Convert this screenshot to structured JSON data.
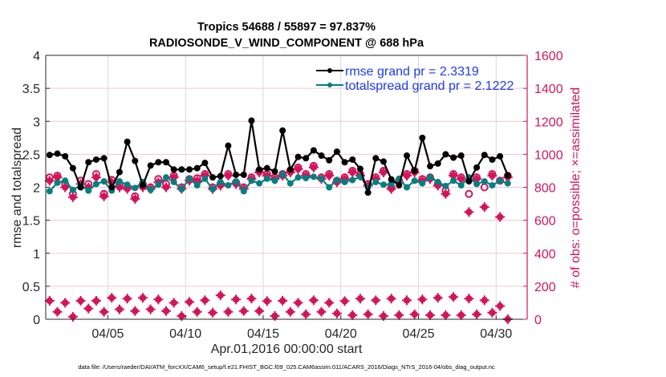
{
  "chart_data": {
    "type": "line",
    "title": "Tropics 54688 / 55897 = 97.837%",
    "subtitle": "RADIOSONDE_V_WIND_COMPONENT @ 688 hPa",
    "xlabel": "Apr.01,2016 00:00:00 start",
    "ylabel": "rmse and totalspread",
    "ylabel_right": "# of obs: o=possible; ×=assimilated",
    "footnote": "data file: /Users/raeder/DAI/ATM_forcXX/CAM6_setup/f.e21.FHIST_BGC.f09_025.CAM6assim.011/ACARS_2016/Diags_NTrS_2016-04/obs_diag_output.nc",
    "xlim_days": [
      0,
      30
    ],
    "x_start_day": 0.25,
    "x_step_days": 0.5,
    "x_ticks": [
      {
        "day": 4,
        "label": "04/05"
      },
      {
        "day": 9,
        "label": "04/10"
      },
      {
        "day": 14,
        "label": "04/15"
      },
      {
        "day": 19,
        "label": "04/20"
      },
      {
        "day": 24,
        "label": "04/25"
      },
      {
        "day": 29,
        "label": "04/30"
      }
    ],
    "ylim": [
      0,
      4
    ],
    "y_ticks": [
      "0",
      "0.5",
      "1",
      "1.5",
      "2",
      "2.5",
      "3",
      "3.5",
      "4"
    ],
    "ylim_right": [
      0,
      1600
    ],
    "y_ticks_right": [
      "0",
      "200",
      "400",
      "600",
      "800",
      "1000",
      "1200",
      "1400",
      "1600"
    ],
    "grid": true,
    "legend_position": "top-right",
    "legend": [
      {
        "name": "rmse grand pr = 2.3319",
        "color": "#000000"
      },
      {
        "name": "totalspread grand pr = 2.1222",
        "color": "#008080"
      }
    ],
    "series": [
      {
        "name": "rmse",
        "axis": "left",
        "color": "#000000",
        "values": [
          2.49,
          2.51,
          2.47,
          2.29,
          2.0,
          2.38,
          2.42,
          2.44,
          2.0,
          2.23,
          2.69,
          2.4,
          2.03,
          2.33,
          2.38,
          2.38,
          2.27,
          2.27,
          2.27,
          2.29,
          2.37,
          2.15,
          2.17,
          2.63,
          2.19,
          2.19,
          3.01,
          2.27,
          2.29,
          2.24,
          2.86,
          2.27,
          2.46,
          2.44,
          2.56,
          2.48,
          2.41,
          2.54,
          2.38,
          2.42,
          2.28,
          1.92,
          2.44,
          2.39,
          2.12,
          2.03,
          2.48,
          2.25,
          2.75,
          2.32,
          2.36,
          2.5,
          2.45,
          2.48,
          2.09,
          2.3,
          2.49,
          2.42,
          2.47,
          2.18
        ]
      },
      {
        "name": "totalspread",
        "axis": "left",
        "color": "#008080",
        "values": [
          1.94,
          2.07,
          2.1,
          1.96,
          2.03,
          1.95,
          2.05,
          2.09,
          1.95,
          2.09,
          2.04,
          1.99,
          2.08,
          1.96,
          2.04,
          2.15,
          2.08,
          1.97,
          2.13,
          2.03,
          2.13,
          1.97,
          2.08,
          2.03,
          2.09,
          1.94,
          2.1,
          2.06,
          2.13,
          2.1,
          2.2,
          2.06,
          2.15,
          2.14,
          2.16,
          2.13,
          2.0,
          2.11,
          2.08,
          2.11,
          2.16,
          2.0,
          2.08,
          2.04,
          2.05,
          2.13,
          2.0,
          2.1,
          2.06,
          2.15,
          2.08,
          2.02,
          2.1,
          2.03,
          2.15,
          2.05,
          2.09,
          2.03,
          2.1,
          2.06
        ]
      },
      {
        "name": "obs_possible_large",
        "axis": "right",
        "color": "#d4145a",
        "marker": "o",
        "values": [
          860,
          870,
          820,
          760,
          840,
          820,
          880,
          760,
          845,
          820,
          800,
          745,
          820,
          800,
          850,
          820,
          870,
          800,
          850,
          855,
          880,
          800,
          820,
          880,
          830,
          800,
          860,
          900,
          880,
          860,
          880,
          900,
          920,
          880,
          930,
          860,
          880,
          840,
          860,
          900,
          880,
          820,
          860,
          900,
          800,
          840,
          880,
          900,
          850,
          860,
          820,
          780,
          880,
          860,
          760,
          860,
          800,
          880,
          840,
          870
        ]
      },
      {
        "name": "obs_assimilated_large",
        "axis": "right",
        "color": "#d4145a",
        "marker": "x",
        "values": [
          840,
          860,
          800,
          740,
          820,
          800,
          860,
          745,
          830,
          800,
          790,
          730,
          800,
          790,
          830,
          800,
          860,
          790,
          840,
          840,
          870,
          790,
          810,
          870,
          820,
          790,
          850,
          890,
          870,
          850,
          870,
          890,
          910,
          870,
          920,
          850,
          870,
          830,
          850,
          890,
          870,
          810,
          850,
          890,
          790,
          830,
          870,
          890,
          840,
          850,
          810,
          760,
          870,
          850,
          650,
          850,
          680,
          870,
          620,
          860
        ]
      },
      {
        "name": "obs_small",
        "axis": "right",
        "color": "#d4145a",
        "marker": "x",
        "values": [
          112,
          45,
          100,
          15,
          112,
          65,
          112,
          45,
          130,
          60,
          125,
          50,
          130,
          60,
          120,
          50,
          100,
          20,
          105,
          45,
          115,
          40,
          145,
          45,
          120,
          50,
          125,
          50,
          110,
          20,
          112,
          45,
          100,
          30,
          115,
          45,
          100,
          35,
          110,
          25,
          125,
          30,
          115,
          20,
          125,
          25,
          115,
          30,
          120,
          25,
          130,
          25,
          135,
          25,
          125,
          30,
          115,
          40,
          80,
          0
        ]
      }
    ]
  }
}
